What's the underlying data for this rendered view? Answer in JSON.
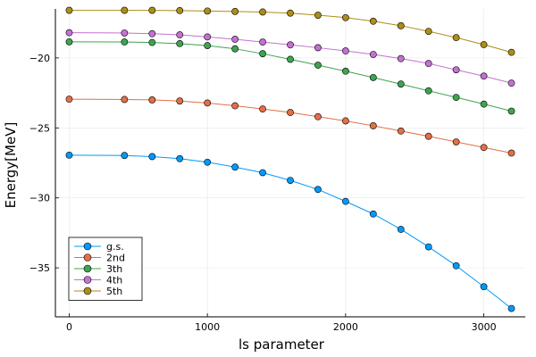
{
  "chart_data": {
    "type": "line",
    "xlabel": "ls parameter",
    "ylabel": "Energy[MeV]",
    "xlim": [
      -100,
      3300
    ],
    "ylim": [
      -38.5,
      -16.5
    ],
    "xticks": [
      0,
      1000,
      2000,
      3000
    ],
    "yticks": [
      -35,
      -30,
      -25,
      -20
    ],
    "grid": true,
    "legend_position": "bottom-left",
    "x": [
      0,
      400,
      600,
      800,
      1000,
      1200,
      1400,
      1600,
      1800,
      2000,
      2200,
      2400,
      2600,
      2800,
      3000,
      3200
    ],
    "series": [
      {
        "name": "g.s.",
        "color": "#009AFA",
        "values": [
          -26.95,
          -26.97,
          -27.05,
          -27.2,
          -27.45,
          -27.8,
          -28.2,
          -28.75,
          -29.4,
          -30.25,
          -31.15,
          -32.25,
          -33.5,
          -34.85,
          -36.35,
          -37.9
        ]
      },
      {
        "name": "2nd",
        "color": "#E36F47",
        "values": [
          -22.95,
          -22.97,
          -23.0,
          -23.08,
          -23.22,
          -23.42,
          -23.65,
          -23.9,
          -24.2,
          -24.5,
          -24.85,
          -25.22,
          -25.6,
          -26.0,
          -26.4,
          -26.8
        ]
      },
      {
        "name": "3th",
        "color": "#3EA44E",
        "values": [
          -18.85,
          -18.86,
          -18.9,
          -18.98,
          -19.12,
          -19.35,
          -19.7,
          -20.1,
          -20.52,
          -20.95,
          -21.4,
          -21.87,
          -22.35,
          -22.82,
          -23.3,
          -23.8
        ]
      },
      {
        "name": "4th",
        "color": "#C371D2",
        "values": [
          -18.2,
          -18.22,
          -18.27,
          -18.35,
          -18.5,
          -18.67,
          -18.87,
          -19.07,
          -19.27,
          -19.5,
          -19.75,
          -20.05,
          -20.4,
          -20.85,
          -21.3,
          -21.8
        ]
      },
      {
        "name": "5th",
        "color": "#AC8E18",
        "values": [
          -16.6,
          -16.6,
          -16.6,
          -16.62,
          -16.65,
          -16.68,
          -16.72,
          -16.8,
          -16.95,
          -17.12,
          -17.38,
          -17.7,
          -18.1,
          -18.55,
          -19.05,
          -19.6
        ]
      }
    ]
  }
}
